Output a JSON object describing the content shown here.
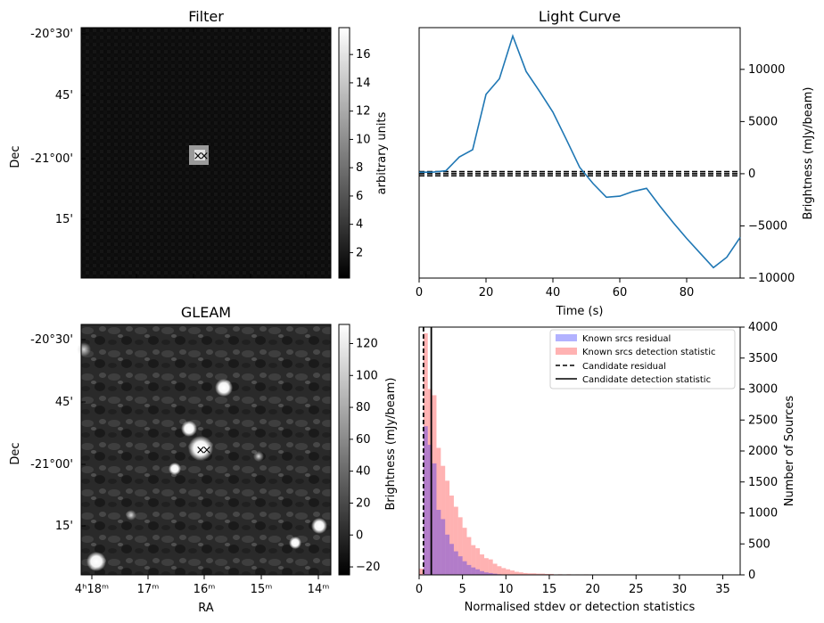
{
  "chart_data": [
    {
      "type": "heatmap",
      "title": "Filter",
      "ylabel": "Dec",
      "y_ticks": [
        "-20°30'",
        "45'",
        "-21°00'",
        "15'"
      ],
      "colorbar": {
        "label": "arbitrary units",
        "range": [
          0.2,
          17.9
        ],
        "ticks": [
          2,
          4,
          6,
          8,
          10,
          12,
          14,
          16
        ]
      },
      "markers": [
        {
          "symbol": "×",
          "color": "#0000ff"
        },
        {
          "symbol": "×",
          "color": "#ff0000"
        }
      ]
    },
    {
      "type": "line",
      "title": "Light Curve",
      "xlabel": "Time (s)",
      "ylabel": "Brightness (mJy/beam)",
      "xlim": [
        0,
        96
      ],
      "ylim": [
        -10000,
        14000
      ],
      "x_ticks": [
        0,
        20,
        40,
        60,
        80
      ],
      "y_ticks": [
        10000,
        5000,
        0,
        -5000,
        -10000
      ],
      "series": [
        {
          "name": "Light curve",
          "color": "#1f77b4",
          "x": [
            0,
            4,
            8,
            12,
            16,
            20,
            24,
            28,
            32,
            36,
            40,
            44,
            48,
            52,
            56,
            60,
            64,
            68,
            72,
            76,
            80,
            84,
            88,
            92,
            96
          ],
          "y": [
            150,
            150,
            280,
            1600,
            2300,
            7600,
            9100,
            13200,
            9800,
            7900,
            5900,
            3300,
            620,
            -940,
            -2250,
            -2150,
            -1700,
            -1400,
            -3100,
            -4700,
            -6200,
            -7600,
            -9000,
            -8000,
            -6100
          ]
        }
      ],
      "hlines": [
        -200,
        0,
        200
      ]
    },
    {
      "type": "heatmap",
      "title": "GLEAM",
      "xlabel": "RA",
      "ylabel": "Dec",
      "x_ticks": [
        "4ʰ18ᵐ",
        "17ᵐ",
        "16ᵐ",
        "15ᵐ",
        "14ᵐ"
      ],
      "y_ticks": [
        "-20°30'",
        "45'",
        "-21°00'",
        "15'"
      ],
      "colorbar": {
        "label": "Brightness (mJy/beam)",
        "range": [
          -25,
          132
        ],
        "ticks": [
          -20,
          0,
          20,
          40,
          60,
          80,
          100,
          120
        ]
      },
      "markers": [
        {
          "symbol": "×",
          "color": "#0000ff"
        },
        {
          "symbol": "×",
          "color": "#ff0000"
        }
      ]
    },
    {
      "type": "bar",
      "subtype": "histogram",
      "xlabel": "Normalised stdev or detection statistics",
      "ylabel": "Number of Sources",
      "xlim": [
        0,
        37
      ],
      "ylim": [
        0,
        4000
      ],
      "x_ticks": [
        0,
        5,
        10,
        15,
        20,
        25,
        30,
        35
      ],
      "y_ticks": [
        0,
        500,
        1000,
        1500,
        2000,
        2500,
        3000,
        3500,
        4000
      ],
      "bin_width": 0.5,
      "series": [
        {
          "name": "Known srcs residual",
          "color": "#0000ff",
          "alpha": 0.3,
          "bin_starts": [
            0.5,
            1.0,
            1.5,
            2.0,
            2.5,
            3.0,
            3.5,
            4.0,
            4.5,
            5.0,
            5.5,
            6.0,
            6.5,
            7.0,
            7.5,
            8.0,
            8.5,
            9.0
          ],
          "counts": [
            2400,
            2100,
            1800,
            1050,
            900,
            650,
            500,
            380,
            300,
            220,
            160,
            120,
            90,
            60,
            40,
            30,
            20,
            10
          ]
        },
        {
          "name": "Known srcs detection statistic",
          "color": "#ff0000",
          "alpha": 0.3,
          "bin_starts": [
            0.0,
            0.5,
            1.0,
            1.5,
            2.0,
            2.5,
            3.0,
            3.5,
            4.0,
            4.5,
            5.0,
            5.5,
            6.0,
            6.5,
            7.0,
            7.5,
            8.0,
            8.5,
            9.0,
            9.5,
            10.0,
            10.5,
            11.0,
            11.5,
            12.0,
            12.5,
            13.0,
            13.5,
            14.0,
            14.5,
            15.0,
            16.0,
            17.0,
            18.0,
            19.0,
            20.0,
            21.0,
            22.0
          ],
          "counts": [
            100,
            3900,
            3000,
            2900,
            2050,
            1760,
            1520,
            1280,
            1100,
            930,
            760,
            610,
            480,
            430,
            330,
            270,
            250,
            180,
            140,
            110,
            90,
            70,
            50,
            40,
            30,
            25,
            25,
            20,
            20,
            15,
            15,
            10,
            10,
            8,
            8,
            6,
            5,
            4
          ]
        }
      ],
      "vlines": [
        {
          "name": "Candidate residual",
          "x": 0.5,
          "style": "dashed"
        },
        {
          "name": "Candidate detection statistic",
          "x": 1.4,
          "style": "solid"
        }
      ],
      "legend": "top-right",
      "left_axis_label": "Brightness (mJy/beam)"
    }
  ]
}
